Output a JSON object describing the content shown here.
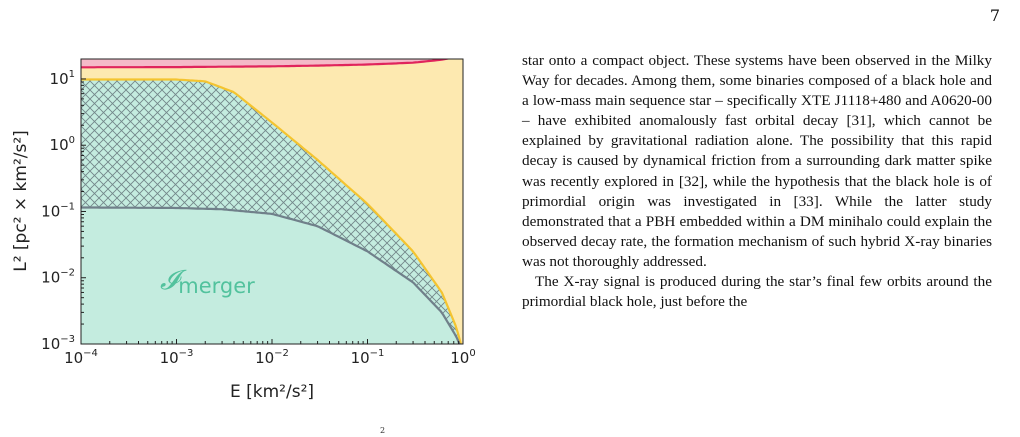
{
  "page": {
    "number": "7"
  },
  "figure": {
    "region_label": "𝓘",
    "region_label_sub": "merger",
    "caption_fragment": "2",
    "colors": {
      "yellow": "#fde9b0",
      "pink": "#f5b9c8",
      "teal": "#c4ecdf",
      "teal_label": "#52c29d",
      "crimson": "#e0245c",
      "gold": "#f4c430",
      "slate": "#70808a",
      "hatch": "#73878a"
    }
  },
  "chart_data": {
    "type": "area",
    "title": "",
    "xlabel": "E [km²/s²]",
    "ylabel": "L² [pc² × km²/s²]",
    "xscale": "log",
    "yscale": "log",
    "xlim": [
      0.0001,
      1
    ],
    "ylim": [
      0.001,
      20
    ],
    "xticks": [
      {
        "value": 0.0001,
        "base": "10",
        "exp": "−4"
      },
      {
        "value": 0.001,
        "base": "10",
        "exp": "−3"
      },
      {
        "value": 0.01,
        "base": "10",
        "exp": "−2"
      },
      {
        "value": 0.1,
        "base": "10",
        "exp": "−1"
      },
      {
        "value": 1,
        "base": "10",
        "exp": "0"
      }
    ],
    "yticks": [
      {
        "value": 0.001,
        "base": "10",
        "exp": "−3"
      },
      {
        "value": 0.01,
        "base": "10",
        "exp": "−2"
      },
      {
        "value": 0.1,
        "base": "10",
        "exp": "−1"
      },
      {
        "value": 1,
        "base": "10",
        "exp": "0"
      },
      {
        "value": 10,
        "base": "10",
        "exp": "1"
      }
    ],
    "grid": false,
    "series": [
      {
        "x": [
          0.0001,
          0.001,
          0.003,
          0.01,
          0.03,
          0.1,
          0.3,
          0.6,
          0.9
        ],
        "y": [
          15.0,
          15.1,
          15.3,
          15.5,
          15.9,
          16.5,
          17.6,
          19.5,
          22.0
        ]
      },
      {
        "x": [
          0.0001,
          0.001,
          0.002,
          0.004,
          0.01,
          0.03,
          0.1,
          0.3,
          0.6,
          0.85,
          0.95
        ],
        "y": [
          9.8,
          9.8,
          9.2,
          6.3,
          2.2,
          0.6,
          0.13,
          0.025,
          0.006,
          0.0018,
          0.001
        ]
      },
      {
        "x": [
          0.0001,
          0.001,
          0.003,
          0.01,
          0.03,
          0.1,
          0.3,
          0.6,
          0.85,
          0.92
        ],
        "y": [
          0.115,
          0.113,
          0.108,
          0.092,
          0.06,
          0.025,
          0.0085,
          0.003,
          0.0013,
          0.001
        ]
      }
    ]
  },
  "text": {
    "paragraphs": [
      "star onto a compact object. These systems have been observed in the Milky Way for decades. Among them, some binaries composed of a black hole and a low-mass main sequence star – specifically XTE J1118+480 and A0620-00 – have exhibited anomalously fast orbital decay [31], which cannot be explained by gravitational radiation alone. The possibility that this rapid decay is caused by dynamical friction from a surrounding dark matter spike was recently explored in [32], while the hypothesis that the black hole is of primordial origin was investigated in [33]. While the latter study demonstrated that a PBH embedded within a DM minihalo could explain the observed decay rate, the formation mechanism of such hybrid X-ray binaries was not thoroughly addressed.",
      "The X-ray signal is produced during the star’s final few orbits around the primordial black hole, just before the"
    ]
  }
}
